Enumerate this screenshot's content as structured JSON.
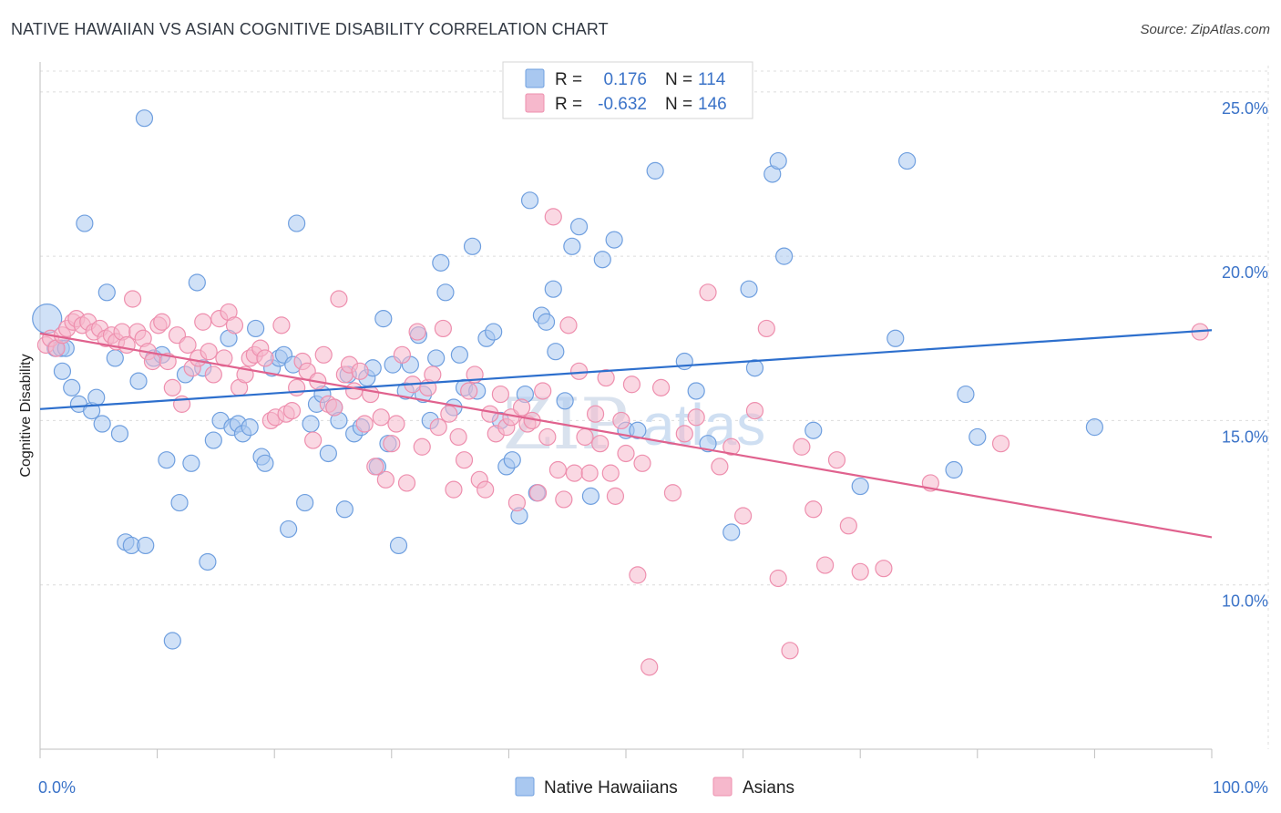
{
  "header": {
    "title": "NATIVE HAWAIIAN VS ASIAN COGNITIVE DISABILITY CORRELATION CHART",
    "source": "Source: ZipAtlas.com"
  },
  "watermark": {
    "part1": "ZIP",
    "part2": "atlas"
  },
  "legend_top": {
    "r_label": "R =",
    "n_label": "N =",
    "rows": [
      {
        "r": "0.176",
        "n": "114"
      },
      {
        "r": "-0.632",
        "n": "146"
      }
    ]
  },
  "legend_bottom": [
    "Native Hawaiians",
    "Asians"
  ],
  "colors": {
    "blue_fill": "#a9c8f0",
    "blue_stroke": "#6f9fdf",
    "blue_line": "#2d6fcd",
    "pink_fill": "#f6b8cc",
    "pink_stroke": "#ee8fae",
    "pink_line": "#e0628e",
    "tick_text": "#3b73c8"
  },
  "chart_data": {
    "type": "scatter",
    "ylabel": "Cognitive Disability",
    "xlim": [
      0,
      100
    ],
    "ylim": [
      5.0,
      25.8
    ],
    "x_tick_labels": [
      "0.0%",
      "100.0%"
    ],
    "y_ticks": [
      10,
      15,
      20,
      25
    ],
    "y_tick_labels": [
      "10.0%",
      "15.0%",
      "20.0%",
      "25.0%"
    ],
    "grid": true,
    "series": [
      {
        "name": "Native Hawaiians",
        "trend": {
          "x": [
            0,
            100
          ],
          "y": [
            15.35,
            17.75
          ]
        },
        "points": [
          [
            0.6,
            18.1
          ],
          [
            1.3,
            17.2
          ],
          [
            1.8,
            17.2
          ],
          [
            1.9,
            16.5
          ],
          [
            2.2,
            17.2
          ],
          [
            2.7,
            16.0
          ],
          [
            3.3,
            15.5
          ],
          [
            3.8,
            21.0
          ],
          [
            4.4,
            15.3
          ],
          [
            4.8,
            15.7
          ],
          [
            5.3,
            14.9
          ],
          [
            5.7,
            18.9
          ],
          [
            6.4,
            16.9
          ],
          [
            6.8,
            14.6
          ],
          [
            7.3,
            11.3
          ],
          [
            7.8,
            11.2
          ],
          [
            8.4,
            16.2
          ],
          [
            8.9,
            24.2
          ],
          [
            9.0,
            11.2
          ],
          [
            9.7,
            16.9
          ],
          [
            10.4,
            17.0
          ],
          [
            10.8,
            13.8
          ],
          [
            11.3,
            8.3
          ],
          [
            11.9,
            12.5
          ],
          [
            12.4,
            16.4
          ],
          [
            12.9,
            13.7
          ],
          [
            13.4,
            19.2
          ],
          [
            13.9,
            16.6
          ],
          [
            14.3,
            10.7
          ],
          [
            14.8,
            14.4
          ],
          [
            15.4,
            15.0
          ],
          [
            16.1,
            17.5
          ],
          [
            16.4,
            14.8
          ],
          [
            16.9,
            14.9
          ],
          [
            17.3,
            14.6
          ],
          [
            17.9,
            14.8
          ],
          [
            18.4,
            17.8
          ],
          [
            18.9,
            13.9
          ],
          [
            19.2,
            13.7
          ],
          [
            19.8,
            16.6
          ],
          [
            20.4,
            16.9
          ],
          [
            20.8,
            17.0
          ],
          [
            21.2,
            11.7
          ],
          [
            21.6,
            16.7
          ],
          [
            21.9,
            21.0
          ],
          [
            22.6,
            12.5
          ],
          [
            23.1,
            14.9
          ],
          [
            23.6,
            15.5
          ],
          [
            24.1,
            15.8
          ],
          [
            24.6,
            14.0
          ],
          [
            25.1,
            15.4
          ],
          [
            25.5,
            15.0
          ],
          [
            26.0,
            12.3
          ],
          [
            26.3,
            16.4
          ],
          [
            26.8,
            14.6
          ],
          [
            27.4,
            14.8
          ],
          [
            27.9,
            16.3
          ],
          [
            28.4,
            16.6
          ],
          [
            28.8,
            13.6
          ],
          [
            29.3,
            18.1
          ],
          [
            29.7,
            14.3
          ],
          [
            30.1,
            16.7
          ],
          [
            30.6,
            11.2
          ],
          [
            31.2,
            15.9
          ],
          [
            31.6,
            16.7
          ],
          [
            32.3,
            17.6
          ],
          [
            32.7,
            15.8
          ],
          [
            33.3,
            15.0
          ],
          [
            33.8,
            16.9
          ],
          [
            34.2,
            19.8
          ],
          [
            34.6,
            18.9
          ],
          [
            35.3,
            15.4
          ],
          [
            35.8,
            17.0
          ],
          [
            36.2,
            16.0
          ],
          [
            36.9,
            20.3
          ],
          [
            37.3,
            15.9
          ],
          [
            38.1,
            17.5
          ],
          [
            38.7,
            17.7
          ],
          [
            39.3,
            15.0
          ],
          [
            39.8,
            13.6
          ],
          [
            40.3,
            13.8
          ],
          [
            40.9,
            12.1
          ],
          [
            41.4,
            15.8
          ],
          [
            41.8,
            21.7
          ],
          [
            42.4,
            12.8
          ],
          [
            42.8,
            18.2
          ],
          [
            43.2,
            18.0
          ],
          [
            43.8,
            19.0
          ],
          [
            44.0,
            17.1
          ],
          [
            44.8,
            15.6
          ],
          [
            45.4,
            20.3
          ],
          [
            46.0,
            20.9
          ],
          [
            47.0,
            12.7
          ],
          [
            48.0,
            19.9
          ],
          [
            49.0,
            20.5
          ],
          [
            50.0,
            14.7
          ],
          [
            51.0,
            14.7
          ],
          [
            52.5,
            22.6
          ],
          [
            55.0,
            16.8
          ],
          [
            56.0,
            15.9
          ],
          [
            57.0,
            14.3
          ],
          [
            59.0,
            11.6
          ],
          [
            60.5,
            19.0
          ],
          [
            61.0,
            16.6
          ],
          [
            62.5,
            22.5
          ],
          [
            63.0,
            22.9
          ],
          [
            63.5,
            20.0
          ],
          [
            66.0,
            14.7
          ],
          [
            70.0,
            13.0
          ],
          [
            73.0,
            17.5
          ],
          [
            74.0,
            22.9
          ],
          [
            78.0,
            13.5
          ],
          [
            79.0,
            15.8
          ],
          [
            80.0,
            14.5
          ],
          [
            90.0,
            14.8
          ]
        ]
      },
      {
        "name": "Asians",
        "trend": {
          "x": [
            0,
            100
          ],
          "y": [
            17.65,
            11.45
          ]
        },
        "points": [
          [
            0.5,
            17.3
          ],
          [
            0.9,
            17.5
          ],
          [
            1.4,
            17.2
          ],
          [
            1.9,
            17.6
          ],
          [
            2.3,
            17.8
          ],
          [
            2.8,
            18.0
          ],
          [
            3.1,
            18.1
          ],
          [
            3.6,
            17.9
          ],
          [
            4.1,
            18.0
          ],
          [
            4.6,
            17.7
          ],
          [
            5.1,
            17.8
          ],
          [
            5.6,
            17.5
          ],
          [
            6.1,
            17.6
          ],
          [
            6.5,
            17.4
          ],
          [
            7.0,
            17.7
          ],
          [
            7.4,
            17.3
          ],
          [
            7.9,
            18.7
          ],
          [
            8.3,
            17.7
          ],
          [
            8.8,
            17.5
          ],
          [
            9.2,
            17.1
          ],
          [
            9.6,
            16.8
          ],
          [
            10.1,
            17.9
          ],
          [
            10.4,
            18.0
          ],
          [
            10.9,
            16.8
          ],
          [
            11.3,
            16.0
          ],
          [
            11.7,
            17.6
          ],
          [
            12.1,
            15.5
          ],
          [
            12.6,
            17.3
          ],
          [
            13.0,
            16.6
          ],
          [
            13.5,
            16.9
          ],
          [
            13.9,
            18.0
          ],
          [
            14.4,
            17.1
          ],
          [
            14.8,
            16.4
          ],
          [
            15.3,
            18.1
          ],
          [
            15.7,
            16.9
          ],
          [
            16.1,
            18.3
          ],
          [
            16.6,
            17.9
          ],
          [
            17.0,
            16.0
          ],
          [
            17.5,
            16.4
          ],
          [
            17.9,
            16.9
          ],
          [
            18.3,
            17.0
          ],
          [
            18.8,
            17.2
          ],
          [
            19.2,
            16.9
          ],
          [
            19.7,
            15.0
          ],
          [
            20.1,
            15.1
          ],
          [
            20.6,
            17.9
          ],
          [
            21.0,
            15.2
          ],
          [
            21.5,
            15.3
          ],
          [
            21.9,
            16.0
          ],
          [
            22.4,
            16.8
          ],
          [
            22.8,
            16.5
          ],
          [
            23.3,
            14.4
          ],
          [
            23.7,
            16.2
          ],
          [
            24.2,
            17.0
          ],
          [
            24.6,
            15.5
          ],
          [
            25.1,
            15.4
          ],
          [
            25.5,
            18.7
          ],
          [
            26.0,
            16.4
          ],
          [
            26.4,
            16.7
          ],
          [
            26.8,
            15.9
          ],
          [
            27.3,
            16.5
          ],
          [
            27.7,
            14.9
          ],
          [
            28.2,
            15.8
          ],
          [
            28.6,
            13.6
          ],
          [
            29.1,
            15.1
          ],
          [
            29.5,
            13.2
          ],
          [
            30.0,
            14.3
          ],
          [
            30.4,
            14.9
          ],
          [
            30.9,
            17.0
          ],
          [
            31.3,
            13.1
          ],
          [
            31.8,
            16.1
          ],
          [
            32.2,
            17.7
          ],
          [
            32.6,
            14.2
          ],
          [
            33.1,
            16.0
          ],
          [
            33.5,
            16.4
          ],
          [
            34.0,
            14.8
          ],
          [
            34.4,
            17.8
          ],
          [
            34.9,
            15.2
          ],
          [
            35.3,
            12.9
          ],
          [
            35.7,
            14.5
          ],
          [
            36.2,
            13.8
          ],
          [
            36.6,
            15.9
          ],
          [
            37.1,
            16.4
          ],
          [
            37.5,
            13.2
          ],
          [
            38.0,
            12.9
          ],
          [
            38.4,
            15.2
          ],
          [
            38.9,
            14.6
          ],
          [
            39.3,
            15.8
          ],
          [
            39.8,
            14.8
          ],
          [
            40.2,
            15.1
          ],
          [
            40.7,
            12.5
          ],
          [
            41.1,
            15.4
          ],
          [
            41.6,
            14.9
          ],
          [
            42.0,
            15.0
          ],
          [
            42.5,
            12.8
          ],
          [
            42.9,
            15.9
          ],
          [
            43.3,
            14.5
          ],
          [
            43.8,
            21.2
          ],
          [
            44.2,
            13.5
          ],
          [
            44.7,
            12.6
          ],
          [
            45.1,
            17.9
          ],
          [
            45.6,
            13.4
          ],
          [
            46.0,
            16.5
          ],
          [
            46.5,
            14.5
          ],
          [
            46.9,
            13.4
          ],
          [
            47.4,
            15.2
          ],
          [
            47.8,
            14.3
          ],
          [
            48.3,
            16.3
          ],
          [
            48.7,
            13.4
          ],
          [
            49.1,
            12.7
          ],
          [
            49.6,
            15.0
          ],
          [
            50.0,
            14.0
          ],
          [
            50.5,
            16.1
          ],
          [
            51.0,
            10.3
          ],
          [
            51.4,
            13.7
          ],
          [
            52.0,
            7.5
          ],
          [
            53.0,
            16.0
          ],
          [
            54.0,
            12.8
          ],
          [
            55.0,
            14.6
          ],
          [
            56.0,
            15.1
          ],
          [
            57.0,
            18.9
          ],
          [
            58.0,
            13.6
          ],
          [
            59.0,
            14.2
          ],
          [
            60.0,
            12.1
          ],
          [
            61.0,
            15.3
          ],
          [
            62.0,
            17.8
          ],
          [
            63.0,
            10.2
          ],
          [
            64.0,
            8.0
          ],
          [
            65.0,
            14.2
          ],
          [
            66.0,
            12.3
          ],
          [
            67.0,
            10.6
          ],
          [
            68.0,
            13.8
          ],
          [
            69.0,
            11.8
          ],
          [
            70.0,
            10.4
          ],
          [
            72.0,
            10.5
          ],
          [
            76.0,
            13.1
          ],
          [
            82.0,
            14.3
          ],
          [
            99.0,
            17.7
          ]
        ]
      }
    ]
  }
}
